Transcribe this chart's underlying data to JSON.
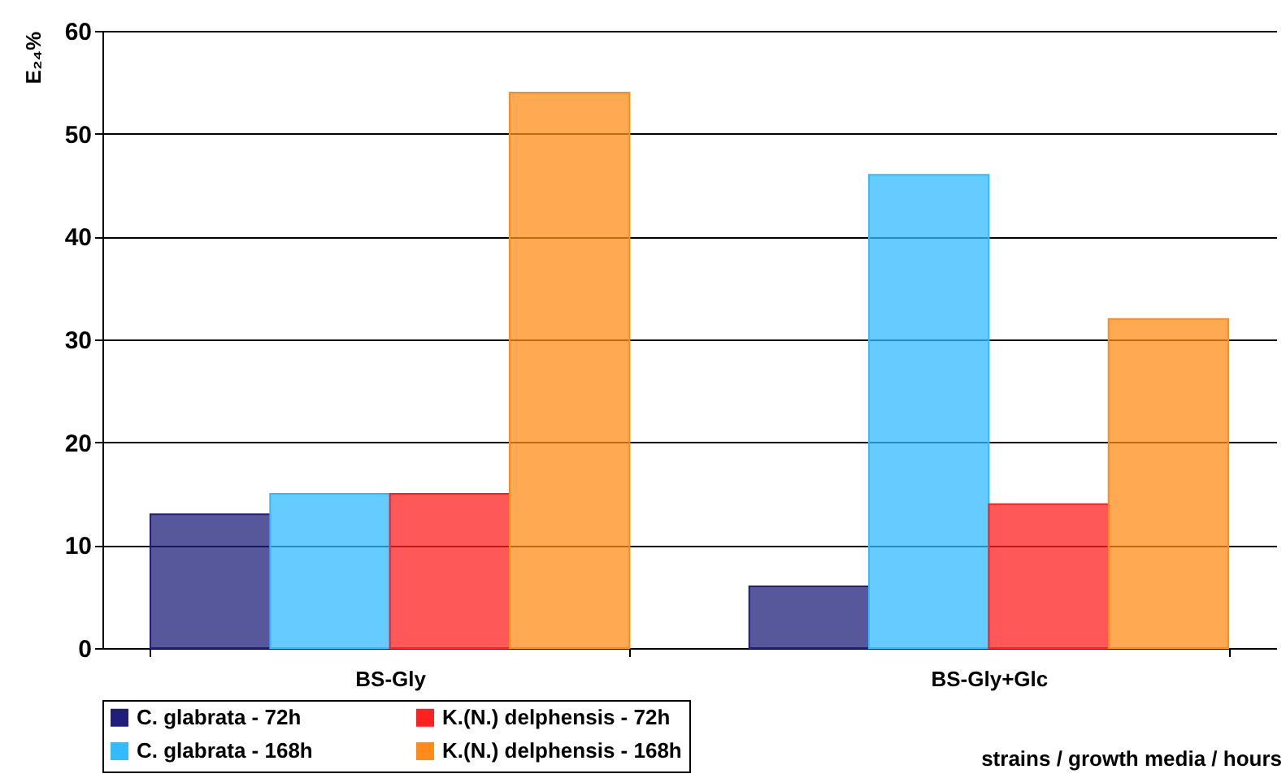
{
  "chart_data": {
    "type": "bar",
    "xlabel": "strains / growth media / hours",
    "ylabel": "E₂₄%",
    "categories": [
      "BS-Gly",
      "BS-Gly+Glc"
    ],
    "series": [
      {
        "name": "C. glabrata - 72h",
        "color": "#1f1f7a",
        "values": [
          13,
          6
        ]
      },
      {
        "name": "C. glabrata - 168h",
        "color": "#33bbff",
        "values": [
          15,
          46
        ]
      },
      {
        "name": "K.(N.) delphensis - 72h",
        "color": "#ff2020",
        "values": [
          15,
          14
        ]
      },
      {
        "name": "K.(N.) delphensis - 168h",
        "color": "#ff8c1a",
        "values": [
          54,
          32
        ]
      }
    ],
    "ylim": [
      0,
      60
    ],
    "yticks": [
      0,
      10,
      20,
      30,
      40,
      50,
      60
    ],
    "grid": "y",
    "legend": "bottom"
  }
}
